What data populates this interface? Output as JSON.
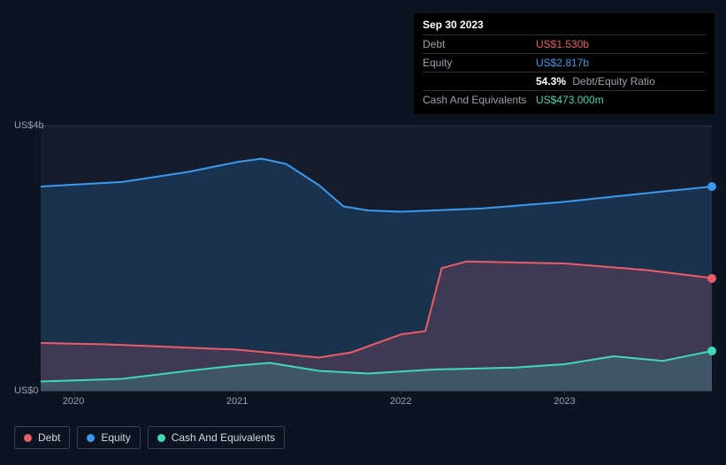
{
  "tooltip": {
    "date": "Sep 30 2023",
    "debt_label": "Debt",
    "debt_value": "US$1.530b",
    "equity_label": "Equity",
    "equity_value": "US$2.817b",
    "ratio_pct": "54.3%",
    "ratio_label": "Debt/Equity Ratio",
    "cash_label": "Cash And Equivalents",
    "cash_value": "US$473.000m"
  },
  "chart": {
    "type": "area",
    "background_color": "#0d1421",
    "plot_background": "#151c2c",
    "grid_color": "#2a3142",
    "text_color": "#9aa0ab",
    "ylim": [
      0,
      4
    ],
    "yticks": [
      {
        "value": 0,
        "label": "US$0"
      },
      {
        "value": 4,
        "label": "US$4b"
      }
    ],
    "xlim": [
      2019.8,
      2023.9
    ],
    "xticks": [
      {
        "value": 2020,
        "label": "2020"
      },
      {
        "value": 2021,
        "label": "2021"
      },
      {
        "value": 2022,
        "label": "2022"
      },
      {
        "value": 2023,
        "label": "2023"
      }
    ],
    "series": [
      {
        "name": "Debt",
        "color": "#eb5b68",
        "fill_opacity": 0.18,
        "x": [
          2019.8,
          2020.2,
          2020.6,
          2021.0,
          2021.3,
          2021.5,
          2021.7,
          2022.0,
          2022.15,
          2022.25,
          2022.4,
          2023.0,
          2023.5,
          2023.9
        ],
        "y": [
          0.72,
          0.7,
          0.66,
          0.62,
          0.55,
          0.5,
          0.58,
          0.85,
          0.9,
          1.85,
          1.95,
          1.92,
          1.82,
          1.7
        ]
      },
      {
        "name": "Equity",
        "color": "#3a9af0",
        "fill_opacity": 0.18,
        "x": [
          2019.8,
          2020.3,
          2020.7,
          2021.0,
          2021.15,
          2021.3,
          2021.5,
          2021.65,
          2021.8,
          2022.0,
          2022.5,
          2023.0,
          2023.5,
          2023.9
        ],
        "y": [
          3.08,
          3.15,
          3.3,
          3.45,
          3.5,
          3.42,
          3.1,
          2.78,
          2.72,
          2.7,
          2.75,
          2.85,
          2.98,
          3.08
        ]
      },
      {
        "name": "Cash And Equivalents",
        "color": "#40d9b8",
        "fill_opacity": 0.18,
        "x": [
          2019.8,
          2020.3,
          2020.7,
          2021.0,
          2021.2,
          2021.5,
          2021.8,
          2022.2,
          2022.7,
          2023.0,
          2023.3,
          2023.6,
          2023.9
        ],
        "y": [
          0.14,
          0.18,
          0.3,
          0.38,
          0.42,
          0.3,
          0.26,
          0.32,
          0.35,
          0.4,
          0.52,
          0.45,
          0.6
        ]
      }
    ],
    "legend": [
      {
        "label": "Debt",
        "color": "#eb5b68"
      },
      {
        "label": "Equity",
        "color": "#3a9af0"
      },
      {
        "label": "Cash And Equivalents",
        "color": "#40d9b8"
      }
    ]
  }
}
